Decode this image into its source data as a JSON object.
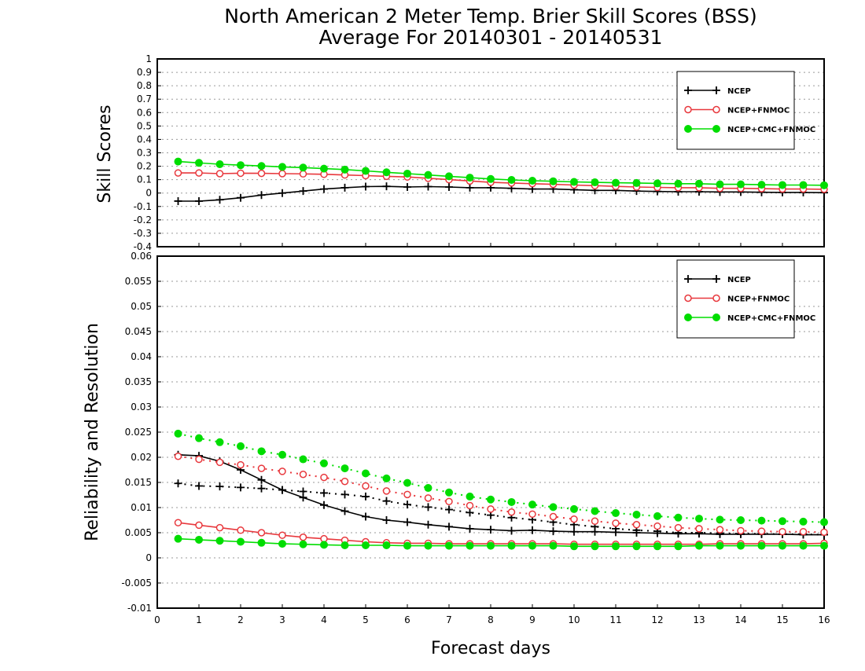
{
  "title_line1": "North American 2 Meter Temp. Brier Skill Scores (BSS)",
  "title_line2": "Average For 20140301 - 20140531",
  "chart_data": [
    {
      "type": "line",
      "ylabel": "Skill Scores",
      "xlabel": "Forecast days",
      "xlim": [
        0,
        16
      ],
      "ylim": [
        -0.4,
        1
      ],
      "grid": true,
      "legend_position": "top-right",
      "x_ticks": [
        "0",
        "1",
        "2",
        "3",
        "4",
        "5",
        "6",
        "7",
        "8",
        "9",
        "10",
        "11",
        "12",
        "13",
        "14",
        "15",
        "16"
      ],
      "y_ticks": [
        "-0.4",
        "-0.3",
        "-0.2",
        "-0.1",
        "0",
        "0.1",
        "0.2",
        "0.3",
        "0.4",
        "0.5",
        "0.6",
        "0.7",
        "0.8",
        "0.9",
        "1"
      ],
      "x": [
        0.5,
        1,
        1.5,
        2,
        2.5,
        3,
        3.5,
        4,
        4.5,
        5,
        5.5,
        6,
        6.5,
        7,
        7.5,
        8,
        8.5,
        9,
        9.5,
        10,
        10.5,
        11,
        11.5,
        12,
        12.5,
        13,
        13.5,
        14,
        14.5,
        15,
        15.5,
        16
      ],
      "series": [
        {
          "name": "NCEP",
          "color": "#000000",
          "marker": "plus",
          "line": "solid",
          "values": [
            -0.06,
            -0.06,
            -0.05,
            -0.035,
            -0.015,
            0,
            0.015,
            0.03,
            0.04,
            0.048,
            0.05,
            0.045,
            0.048,
            0.045,
            0.04,
            0.04,
            0.035,
            0.03,
            0.03,
            0.025,
            0.02,
            0.02,
            0.015,
            0.012,
            0.01,
            0.01,
            0.008,
            0.008,
            0.006,
            0.005,
            0.005,
            0.003
          ]
        },
        {
          "name": "NCEP+FNMOC",
          "color": "#e8383d",
          "marker": "open-circle",
          "line": "solid",
          "values": [
            0.15,
            0.15,
            0.145,
            0.148,
            0.147,
            0.145,
            0.143,
            0.14,
            0.135,
            0.13,
            0.125,
            0.12,
            0.11,
            0.1,
            0.09,
            0.08,
            0.075,
            0.07,
            0.065,
            0.06,
            0.055,
            0.05,
            0.045,
            0.042,
            0.04,
            0.04,
            0.035,
            0.035,
            0.033,
            0.03,
            0.03,
            0.028
          ]
        },
        {
          "name": "NCEP+CMC+FNMOC",
          "color": "#00dd00",
          "marker": "filled-circle",
          "line": "solid",
          "values": [
            0.235,
            0.225,
            0.215,
            0.208,
            0.202,
            0.195,
            0.19,
            0.182,
            0.175,
            0.165,
            0.155,
            0.145,
            0.135,
            0.125,
            0.115,
            0.105,
            0.098,
            0.092,
            0.088,
            0.083,
            0.08,
            0.077,
            0.075,
            0.072,
            0.07,
            0.07,
            0.065,
            0.065,
            0.062,
            0.06,
            0.06,
            0.058
          ]
        }
      ]
    },
    {
      "type": "line",
      "ylabel": "Reliability and Resolution",
      "xlabel": "Forecast days",
      "xlim": [
        0,
        16
      ],
      "ylim": [
        -0.01,
        0.06
      ],
      "grid": true,
      "legend_position": "top-right",
      "x_ticks": [
        "0",
        "1",
        "2",
        "3",
        "4",
        "5",
        "6",
        "7",
        "8",
        "9",
        "10",
        "11",
        "12",
        "13",
        "14",
        "15",
        "16"
      ],
      "y_ticks": [
        "-0.01",
        "-0.005",
        "0",
        "0.005",
        "0.01",
        "0.015",
        "0.02",
        "0.025",
        "0.03",
        "0.035",
        "0.04",
        "0.045",
        "0.05",
        "0.055",
        "0.06"
      ],
      "x": [
        0.5,
        1,
        1.5,
        2,
        2.5,
        3,
        3.5,
        4,
        4.5,
        5,
        5.5,
        6,
        6.5,
        7,
        7.5,
        8,
        8.5,
        9,
        9.5,
        10,
        10.5,
        11,
        11.5,
        12,
        12.5,
        13,
        13.5,
        14,
        14.5,
        15,
        15.5,
        16
      ],
      "series": [
        {
          "name": "NCEP",
          "color": "#000000",
          "marker": "plus",
          "line": "solid",
          "values": [
            0.0205,
            0.0203,
            0.0192,
            0.0175,
            0.0155,
            0.0135,
            0.012,
            0.0105,
            0.0093,
            0.0082,
            0.0075,
            0.0071,
            0.0066,
            0.0062,
            0.0058,
            0.0056,
            0.0054,
            0.0055,
            0.0053,
            0.0052,
            0.0052,
            0.0051,
            0.005,
            0.0049,
            0.0048,
            0.0048,
            0.0047,
            0.0047,
            0.0047,
            0.0047,
            0.0046,
            0.0046
          ]
        },
        {
          "name": "NCEP",
          "color": "#000000",
          "marker": "plus",
          "line": "dotted",
          "values": [
            0.0148,
            0.0143,
            0.0142,
            0.014,
            0.0138,
            0.0135,
            0.0132,
            0.0129,
            0.0126,
            0.0122,
            0.0113,
            0.0106,
            0.0101,
            0.0096,
            0.009,
            0.0085,
            0.008,
            0.0076,
            0.0071,
            0.0066,
            0.0062,
            0.0058,
            0.0055,
            0.0053,
            0.005,
            0.005,
            0.0049,
            0.0048,
            0.0048,
            0.0047,
            0.0047,
            0.0046
          ]
        },
        {
          "name": "NCEP+FNMOC",
          "color": "#e8383d",
          "marker": "open-circle",
          "line": "solid",
          "values": [
            0.007,
            0.0065,
            0.006,
            0.0055,
            0.005,
            0.0045,
            0.0041,
            0.0038,
            0.0035,
            0.0032,
            0.003,
            0.0029,
            0.0029,
            0.0028,
            0.0028,
            0.0028,
            0.0028,
            0.0028,
            0.0028,
            0.0027,
            0.0027,
            0.0027,
            0.0027,
            0.0027,
            0.0027,
            0.0027,
            0.0028,
            0.0028,
            0.0028,
            0.0028,
            0.0028,
            0.0029
          ]
        },
        {
          "name": "NCEP+FNMOC",
          "color": "#e8383d",
          "marker": "open-circle",
          "line": "dotted",
          "values": [
            0.0202,
            0.0196,
            0.019,
            0.0185,
            0.0178,
            0.0172,
            0.0166,
            0.016,
            0.0152,
            0.0143,
            0.0133,
            0.0126,
            0.0119,
            0.0112,
            0.0104,
            0.0097,
            0.0091,
            0.0087,
            0.0082,
            0.0077,
            0.0073,
            0.0069,
            0.0066,
            0.0063,
            0.006,
            0.0058,
            0.0056,
            0.0054,
            0.0053,
            0.0052,
            0.0052,
            0.0051
          ]
        },
        {
          "name": "NCEP+CMC+FNMOC",
          "color": "#00dd00",
          "marker": "filled-circle",
          "line": "solid",
          "values": [
            0.0038,
            0.0036,
            0.0034,
            0.0032,
            0.003,
            0.0028,
            0.0027,
            0.0026,
            0.0025,
            0.0025,
            0.0025,
            0.0024,
            0.0024,
            0.0024,
            0.0024,
            0.0024,
            0.0024,
            0.0024,
            0.0024,
            0.0023,
            0.0023,
            0.0023,
            0.0023,
            0.0023,
            0.0023,
            0.0024,
            0.0024,
            0.0024,
            0.0024,
            0.0024,
            0.0024,
            0.0024
          ]
        },
        {
          "name": "NCEP+CMC+FNMOC",
          "color": "#00dd00",
          "marker": "filled-circle",
          "line": "dotted",
          "values": [
            0.0247,
            0.0238,
            0.023,
            0.0222,
            0.0212,
            0.0205,
            0.0196,
            0.0188,
            0.0178,
            0.0168,
            0.0158,
            0.0149,
            0.0139,
            0.013,
            0.0122,
            0.0116,
            0.0111,
            0.0106,
            0.0101,
            0.0097,
            0.0093,
            0.0089,
            0.0086,
            0.0083,
            0.008,
            0.0078,
            0.0076,
            0.0075,
            0.0074,
            0.0073,
            0.0072,
            0.0071
          ]
        }
      ]
    }
  ]
}
